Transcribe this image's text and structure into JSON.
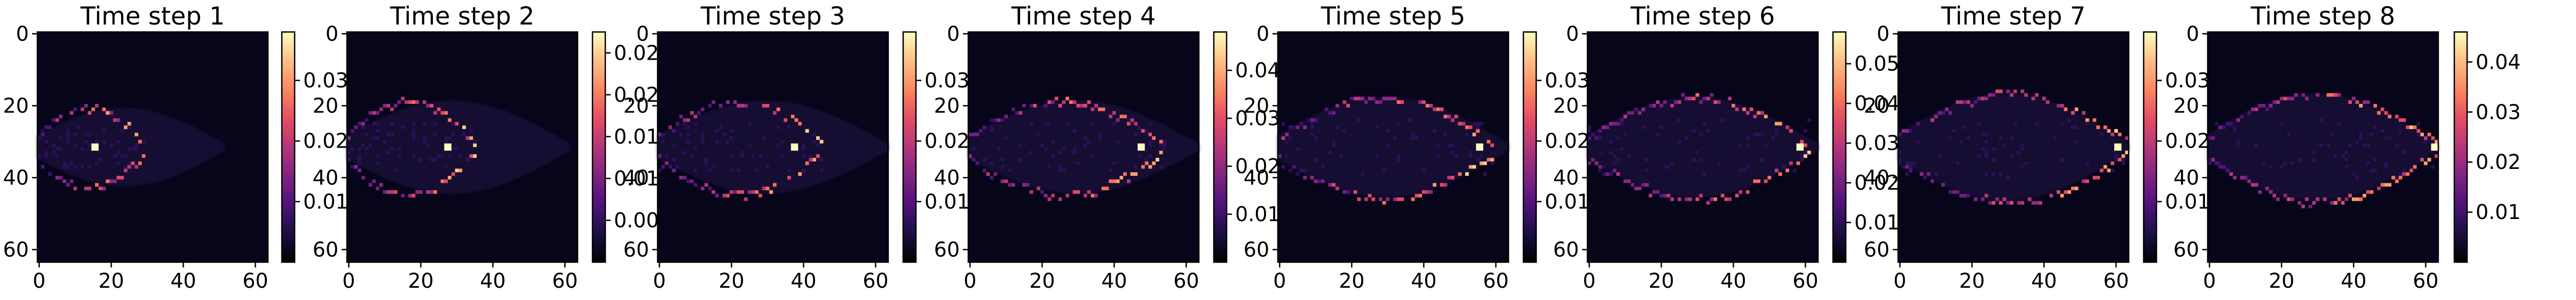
{
  "chart_data": [
    {
      "type": "heatmap",
      "title": "Time step 1",
      "grid": [
        64,
        64
      ],
      "colormap": "magma",
      "xticks": [
        "0",
        "20",
        "40",
        "60"
      ],
      "yticks": [
        "0",
        "20",
        "40",
        "60"
      ],
      "colorbar": {
        "min": 0,
        "max": 0.038,
        "ticks": [
          0.01,
          0.02,
          0.03
        ],
        "tick_labels": [
          "0.01",
          "0.02",
          "0.03"
        ]
      }
    },
    {
      "type": "heatmap",
      "title": "Time step 2",
      "grid": [
        64,
        64
      ],
      "colormap": "magma",
      "xticks": [
        "0",
        "20",
        "40",
        "60"
      ],
      "yticks": [
        "0",
        "20",
        "40",
        "60"
      ],
      "colorbar": {
        "min": 0,
        "max": 0.0275,
        "ticks": [
          0.005,
          0.01,
          0.015,
          0.02,
          0.025
        ],
        "tick_labels": [
          "0.005",
          "0.010",
          "0.015",
          "0.020",
          "0.025"
        ]
      }
    },
    {
      "type": "heatmap",
      "title": "Time step 3",
      "grid": [
        64,
        64
      ],
      "colormap": "magma",
      "xticks": [
        "0",
        "20",
        "40",
        "60"
      ],
      "yticks": [
        "0",
        "20",
        "40",
        "60"
      ],
      "colorbar": {
        "min": 0,
        "max": 0.038,
        "ticks": [
          0.01,
          0.02,
          0.03
        ],
        "tick_labels": [
          "0.01",
          "0.02",
          "0.03"
        ]
      }
    },
    {
      "type": "heatmap",
      "title": "Time step 4",
      "grid": [
        64,
        64
      ],
      "colormap": "magma",
      "xticks": [
        "0",
        "20",
        "40",
        "60"
      ],
      "yticks": [
        "0",
        "20",
        "40",
        "60"
      ],
      "colorbar": {
        "min": 0,
        "max": 0.048,
        "ticks": [
          0.01,
          0.02,
          0.03,
          0.04
        ],
        "tick_labels": [
          "0.01",
          "0.02",
          "0.03",
          "0.04"
        ]
      }
    },
    {
      "type": "heatmap",
      "title": "Time step 5",
      "grid": [
        64,
        64
      ],
      "colormap": "magma",
      "xticks": [
        "0",
        "20",
        "40",
        "60"
      ],
      "yticks": [
        "0",
        "20",
        "40",
        "60"
      ],
      "colorbar": {
        "min": 0,
        "max": 0.038,
        "ticks": [
          0.01,
          0.02,
          0.03
        ],
        "tick_labels": [
          "0.01",
          "0.02",
          "0.03"
        ]
      }
    },
    {
      "type": "heatmap",
      "title": "Time step 6",
      "grid": [
        64,
        64
      ],
      "colormap": "magma",
      "xticks": [
        "0",
        "20",
        "40",
        "60"
      ],
      "yticks": [
        "0",
        "20",
        "40",
        "60"
      ],
      "colorbar": {
        "min": 0,
        "max": 0.058,
        "ticks": [
          0.01,
          0.02,
          0.03,
          0.04,
          0.05
        ],
        "tick_labels": [
          "0.01",
          "0.02",
          "0.03",
          "0.04",
          "0.05"
        ]
      }
    },
    {
      "type": "heatmap",
      "title": "Time step 7",
      "grid": [
        64,
        64
      ],
      "colormap": "magma",
      "xticks": [
        "0",
        "20",
        "40",
        "60"
      ],
      "yticks": [
        "0",
        "20",
        "40",
        "60"
      ],
      "colorbar": {
        "min": 0,
        "max": 0.038,
        "ticks": [
          0.01,
          0.02,
          0.03
        ],
        "tick_labels": [
          "0.01",
          "0.02",
          "0.03"
        ]
      }
    },
    {
      "type": "heatmap",
      "title": "Time step 8",
      "grid": [
        64,
        64
      ],
      "colormap": "magma",
      "xticks": [
        "0",
        "20",
        "40",
        "60"
      ],
      "yticks": [
        "0",
        "20",
        "40",
        "60"
      ],
      "colorbar": {
        "min": 0,
        "max": 0.046,
        "ticks": [
          0.01,
          0.02,
          0.03,
          0.04
        ],
        "tick_labels": [
          "0.01",
          "0.02",
          "0.03",
          "0.04"
        ]
      }
    }
  ]
}
